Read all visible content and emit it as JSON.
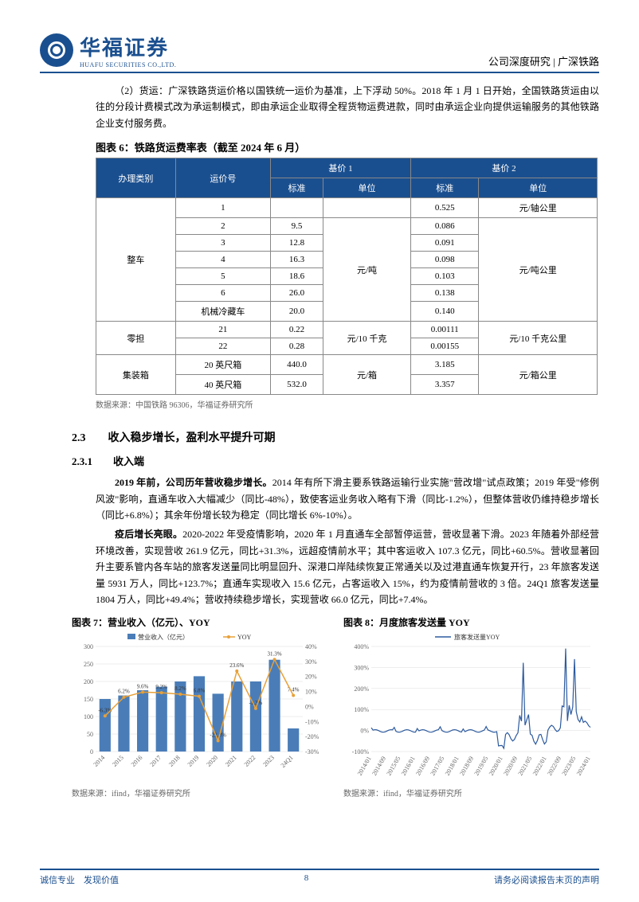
{
  "header": {
    "logo_cn": "华福证券",
    "logo_en": "HUAFU SECURITIES CO.,LTD.",
    "right": "公司深度研究 | 广深铁路"
  },
  "para1": "（2）货运：广深铁路货运价格以国铁统一运价为基准，上下浮动 50%。2018 年 1 月 1 日开始，全国铁路货运由以往的分段计费模式改为承运制模式，即由承运企业取得全程货物运费进款，同时由承运企业向提供运输服务的其他铁路企业支付服务费。",
  "table6": {
    "caption": "图表 6：铁路货运费率表（截至 2024 年 6 月）",
    "headers": {
      "col1": "办理类别",
      "col2": "运价号",
      "base1": "基价 1",
      "base2": "基价 2",
      "std": "标准",
      "unit": "单位"
    },
    "rows": [
      {
        "cat": "整车",
        "rowspan": 7,
        "num": "1",
        "std1": "",
        "unit1": "",
        "std2": "0.525",
        "unit2": "元/轴公里"
      },
      {
        "num": "2",
        "std1": "9.5",
        "std2": "0.086"
      },
      {
        "num": "3",
        "std1": "12.8",
        "std2": "0.091"
      },
      {
        "num": "4",
        "std1": "16.3",
        "unit1": "元/吨",
        "std2": "0.098",
        "unit2": "元/吨公里"
      },
      {
        "num": "5",
        "std1": "18.6",
        "std2": "0.103"
      },
      {
        "num": "6",
        "std1": "26.0",
        "std2": "0.138"
      },
      {
        "num": "机械冷藏车",
        "std1": "20.0",
        "std2": "0.140"
      },
      {
        "cat": "零担",
        "rowspan": 2,
        "num": "21",
        "std1": "0.22",
        "unit1": "元/10 千克",
        "std2": "0.00111",
        "unit2": "元/10 千克公里"
      },
      {
        "num": "22",
        "std1": "0.28",
        "std2": "0.00155"
      },
      {
        "cat": "集装箱",
        "rowspan": 2,
        "num": "20 英尺箱",
        "std1": "440.0",
        "unit1": "元/箱",
        "std2": "3.185",
        "unit2": "元/箱公里"
      },
      {
        "num": "40 英尺箱",
        "std1": "532.0",
        "std2": "3.357"
      }
    ],
    "source": "数据来源：中国铁路 96306，华福证券研究所"
  },
  "section23": "2.3　　收入稳步增长，盈利水平提升可期",
  "section231": "2.3.1　　收入端",
  "para2": "2019 年前，公司历年营收稳步增长。2014 年有所下滑主要系铁路运输行业实施\"营改增\"试点政策；2019 年受\"修例风波\"影响，直通车收入大幅减少（同比-48%），致使客运业务收入略有下滑（同比-1.2%），但整体营收仍维持稳步增长（同比+6.8%）；其余年份增长较为稳定（同比增长 6%-10%）。",
  "para3": "疫后增长亮眼。2020-2022 年受疫情影响，2020 年 1 月直通车全部暂停运营，营收显著下滑。2023 年随着外部经营环境改善，实现营收 261.9 亿元，同比+31.3%，远超疫情前水平；其中客运收入 107.3 亿元，同比+60.5%。营收显著回升主要系管内各车站的旅客发送量同比明显回升、深港口岸陆续恢复正常通关以及过港直通车恢复开行，23 年旅客发送量 5931 万人，同比+123.7%；直通车实现收入 15.6 亿元，占客运收入 15%，约为疫情前营收的 3 倍。24Q1 旅客发送量 1804 万人，同比+49.4%；营收持续稳步增长，实现营收 66.0 亿元，同比+7.4%。",
  "chart7": {
    "caption": "图表 7：营业收入（亿元）、YOY",
    "legend_bar": "营业收入（亿元）",
    "legend_line": "YOY",
    "categories": [
      "2014",
      "2015",
      "2016",
      "2017",
      "2018",
      "2019",
      "2020",
      "2021",
      "2022",
      "2023",
      "24Q1"
    ],
    "revenue": [
      150,
      160,
      175,
      185,
      200,
      215,
      165,
      200,
      200,
      262,
      66
    ],
    "yoy": [
      -6.3,
      6.2,
      9.6,
      9.2,
      8.2,
      6.8,
      -22.8,
      23.6,
      -1.3,
      31.3,
      7.4
    ],
    "yoy_labels": [
      "-6.3%",
      "6.2%",
      "9.6%",
      "9.2%",
      "8.2%",
      "6.8%",
      "-22.8%",
      "23.6%",
      "-1.3%",
      "31.3%",
      "7.4%"
    ],
    "y1_ticks": [
      0,
      50,
      100,
      150,
      200,
      250,
      300
    ],
    "y2_ticks": [
      -30,
      -20,
      -10,
      0,
      10,
      20,
      30,
      40
    ],
    "colors": {
      "bar": "#4a7db8",
      "line": "#e8a038",
      "grid": "#dddddd",
      "bg": "#ffffff"
    },
    "source": "数据来源：ifind，华福证券研究所"
  },
  "chart8": {
    "caption": "图表 8：月度旅客发送量 YOY",
    "legend": "旅客发送量YOY",
    "x_labels": [
      "2014/01",
      "2014/09",
      "2015/05",
      "2016/01",
      "2016/09",
      "2017/05",
      "2018/01",
      "2018/09",
      "2019/05",
      "2020/01",
      "2020/09",
      "2021/05",
      "2022/01",
      "2022/09",
      "2023/05",
      "2024/01"
    ],
    "y_ticks": [
      "-100%",
      "0%",
      "100%",
      "200%",
      "300%",
      "400%"
    ],
    "colors": {
      "line": "#2c5a9e",
      "grid": "#dddddd"
    },
    "source": "数据来源：ifind，华福证券研究所"
  },
  "footer": {
    "left": "诚信专业　发现价值",
    "page": "8",
    "right": "请务必阅读报告末页的声明"
  }
}
